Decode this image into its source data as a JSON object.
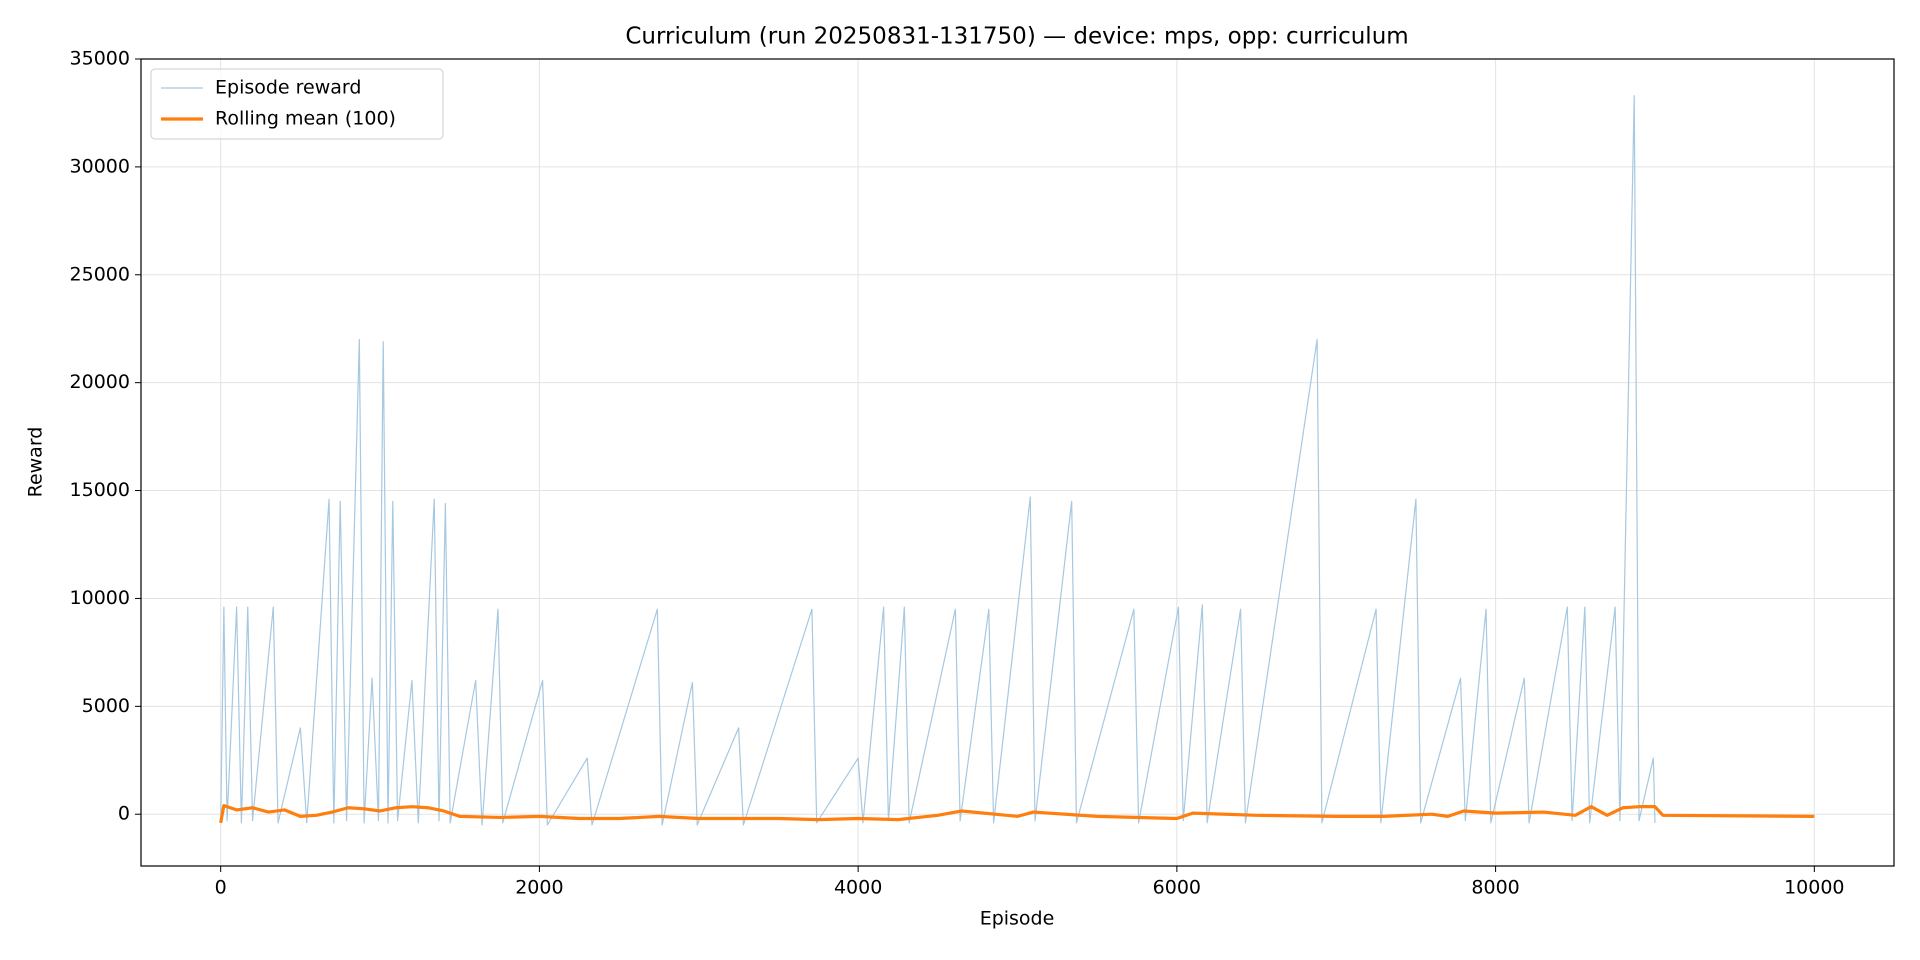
{
  "chart_data": {
    "type": "line",
    "title": "Curriculum (run 20250831-131750) — device: mps, opp: curriculum",
    "x_label": "Episode",
    "y_label": "Reward",
    "xlim": [
      -500,
      10500
    ],
    "ylim": [
      -2400,
      35000
    ],
    "xticks": [
      0,
      2000,
      4000,
      6000,
      8000,
      10000
    ],
    "yticks": [
      0,
      5000,
      10000,
      15000,
      20000,
      25000,
      30000,
      35000
    ],
    "grid": true,
    "legend": "upper-left",
    "series": [
      {
        "name": "Episode reward",
        "color": "#a6c8e0",
        "width": 1.2,
        "x": [
          0,
          20,
          40,
          100,
          130,
          170,
          200,
          330,
          360,
          500,
          540,
          680,
          710,
          750,
          790,
          870,
          900,
          950,
          990,
          1020,
          1050,
          1080,
          1110,
          1200,
          1240,
          1340,
          1370,
          1410,
          1440,
          1600,
          1640,
          1740,
          1770,
          2020,
          2050,
          2300,
          2330,
          2740,
          2770,
          2960,
          2990,
          3250,
          3280,
          3710,
          3740,
          4000,
          4030,
          4160,
          4190,
          4290,
          4320,
          4610,
          4640,
          4820,
          4850,
          5080,
          5110,
          5340,
          5370,
          5730,
          5760,
          6010,
          6040,
          6160,
          6190,
          6400,
          6430,
          6880,
          6910,
          7250,
          7280,
          7500,
          7530,
          7780,
          7810,
          7940,
          7970,
          8180,
          8210,
          8450,
          8480,
          8560,
          8590,
          8750,
          8780,
          8870,
          8900,
          8990,
          9000
        ],
        "values": [
          -400,
          9600,
          -300,
          9600,
          -400,
          9600,
          -300,
          9600,
          -400,
          4000,
          -400,
          14600,
          -400,
          14500,
          -300,
          22000,
          -400,
          6300,
          -300,
          21900,
          -400,
          14500,
          -300,
          6200,
          -400,
          14600,
          -300,
          14400,
          -400,
          6200,
          -500,
          9500,
          -400,
          6200,
          -500,
          2600,
          -500,
          9500,
          -500,
          6100,
          -500,
          4000,
          -500,
          9500,
          -400,
          2600,
          -400,
          9600,
          -300,
          9600,
          -400,
          9500,
          -300,
          9500,
          -400,
          14700,
          -300,
          14500,
          -400,
          9500,
          -400,
          9600,
          -300,
          9700,
          -400,
          9500,
          -400,
          22000,
          -400,
          9500,
          -400,
          14600,
          -400,
          6300,
          -300,
          9500,
          -400,
          6300,
          -400,
          9600,
          -300,
          9600,
          -400,
          9600,
          -300,
          33300,
          -300,
          2600,
          -400
        ]
      },
      {
        "name": "Rolling mean (100)",
        "color": "#ff7f0e",
        "width": 3.2,
        "x": [
          0,
          20,
          100,
          200,
          300,
          400,
          500,
          600,
          700,
          800,
          900,
          1000,
          1100,
          1200,
          1300,
          1400,
          1500,
          1750,
          2000,
          2250,
          2500,
          2750,
          3000,
          3500,
          3750,
          4000,
          4250,
          4500,
          4650,
          5000,
          5100,
          5500,
          6000,
          6100,
          6500,
          7000,
          7300,
          7600,
          7700,
          7800,
          8000,
          8300,
          8500,
          8600,
          8700,
          8800,
          8900,
          9000,
          9050,
          10000
        ],
        "values": [
          -400,
          400,
          200,
          300,
          100,
          200,
          -100,
          -50,
          100,
          300,
          250,
          150,
          300,
          350,
          300,
          150,
          -100,
          -150,
          -100,
          -200,
          -200,
          -100,
          -200,
          -200,
          -250,
          -200,
          -250,
          -50,
          150,
          -100,
          100,
          -100,
          -200,
          50,
          -50,
          -100,
          -100,
          0,
          -100,
          150,
          50,
          100,
          -50,
          350,
          -50,
          300,
          350,
          350,
          -50,
          -100
        ]
      }
    ]
  }
}
